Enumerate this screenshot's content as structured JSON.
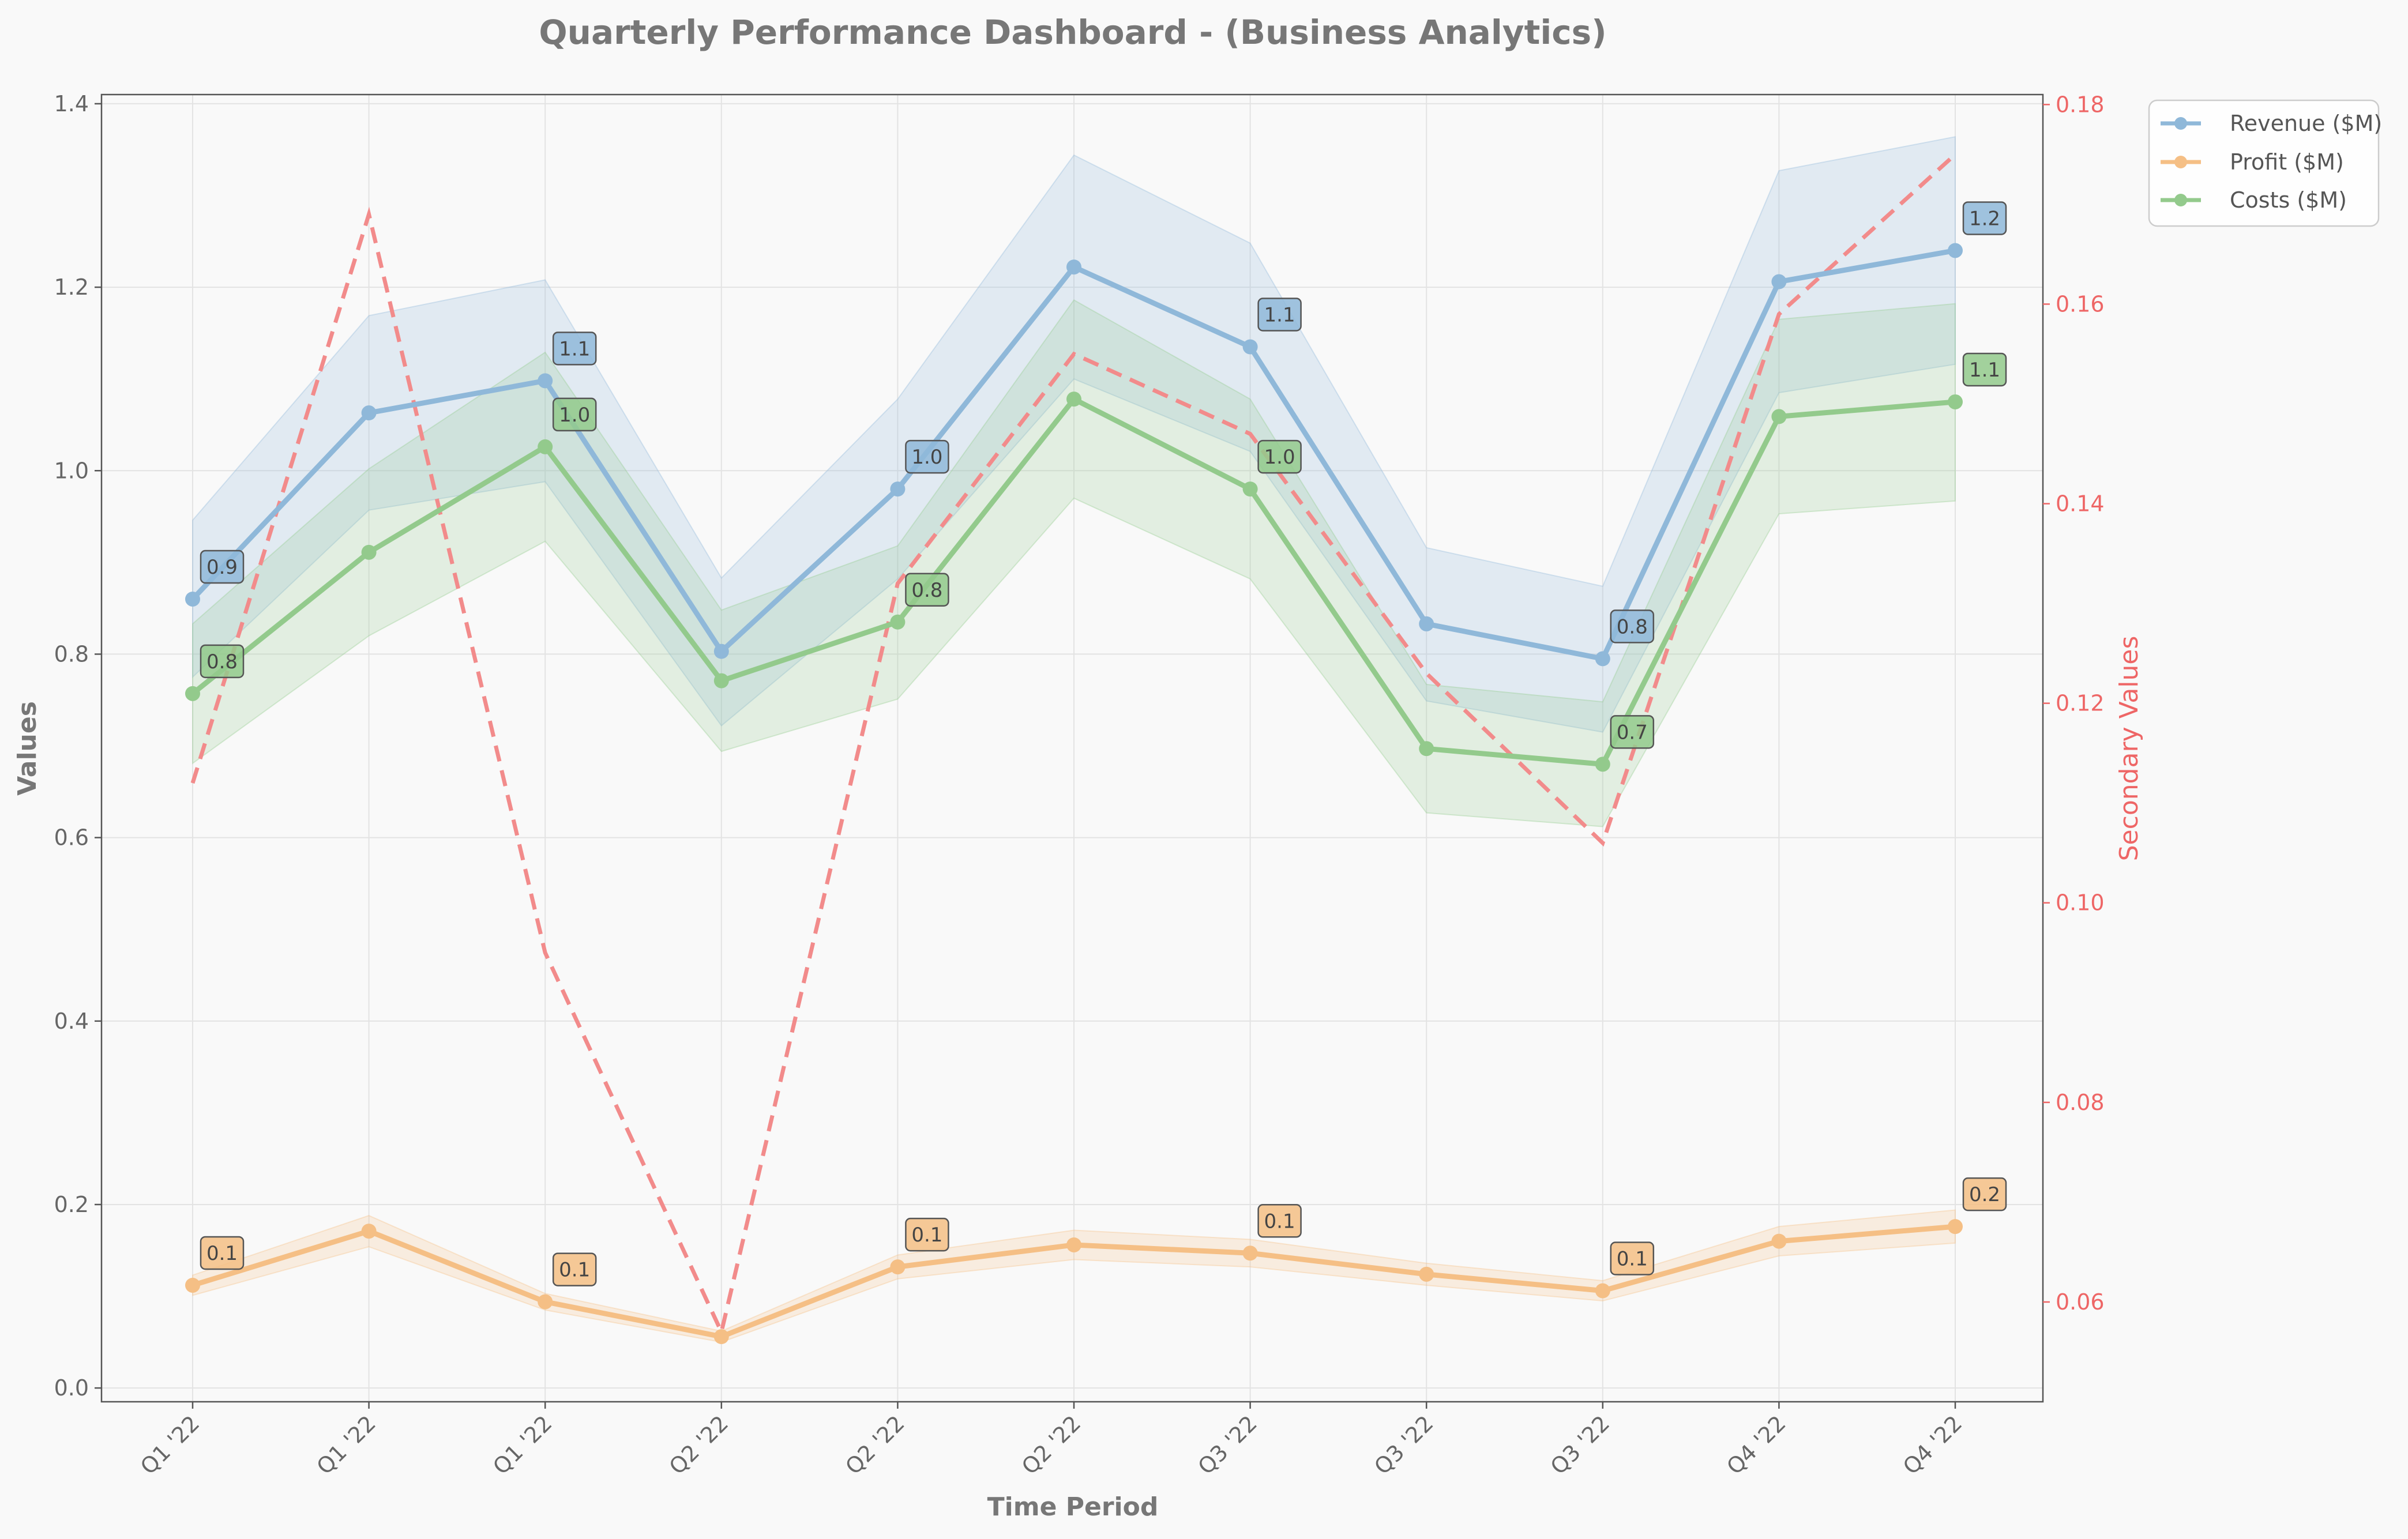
{
  "chart_data": {
    "type": "line",
    "title": "Quarterly Performance Dashboard - (Business Analytics)",
    "xlabel": "Time Period",
    "ylabel": "Values",
    "y2label": "Secondary Values",
    "categories": [
      "Q1 '22",
      "Q1 '22",
      "Q1 '22",
      "Q2 '22",
      "Q2 '22",
      "Q2 '22",
      "Q3 '22",
      "Q3 '22",
      "Q3 '22",
      "Q4 '22",
      "Q4 '22"
    ],
    "ylim": [
      -0.015,
      1.41
    ],
    "y2lim": [
      0.05,
      0.181
    ],
    "yticks": [
      "0.0",
      "0.2",
      "0.4",
      "0.6",
      "0.8",
      "1.0",
      "1.2",
      "1.4"
    ],
    "ytick_values": [
      0.0,
      0.2,
      0.4,
      0.6,
      0.8,
      1.0,
      1.2,
      1.4
    ],
    "y2ticks": [
      "0.06",
      "0.08",
      "0.10",
      "0.12",
      "0.14",
      "0.16",
      "0.18"
    ],
    "y2tick_values": [
      0.06,
      0.08,
      0.1,
      0.12,
      0.14,
      0.16,
      0.18
    ],
    "grid": true,
    "legend_position": "outside top-right",
    "series": [
      {
        "name": "Revenue ($M)",
        "color": "#8fb8d9",
        "values": [
          0.86,
          1.063,
          1.098,
          0.803,
          0.98,
          1.222,
          1.135,
          0.833,
          0.795,
          1.206,
          1.24
        ],
        "band_lower": [
          0.775,
          0.957,
          0.988,
          0.722,
          0.882,
          1.1,
          1.021,
          0.749,
          0.715,
          1.085,
          1.116
        ],
        "band_upper": [
          0.946,
          1.169,
          1.208,
          0.883,
          1.078,
          1.344,
          1.248,
          0.916,
          0.874,
          1.327,
          1.364
        ],
        "labels": [
          "0.9",
          "",
          "1.1",
          "",
          "1.0",
          "",
          "1.1",
          "",
          "0.8",
          "",
          "1.2"
        ]
      },
      {
        "name": "Profit ($M)",
        "color": "#f5bf85",
        "values": [
          0.112,
          0.171,
          0.094,
          0.056,
          0.132,
          0.156,
          0.147,
          0.124,
          0.106,
          0.16,
          0.176
        ],
        "band_lower": [
          0.101,
          0.154,
          0.085,
          0.05,
          0.119,
          0.14,
          0.132,
          0.112,
          0.095,
          0.144,
          0.158
        ],
        "band_upper": [
          0.123,
          0.188,
          0.103,
          0.062,
          0.145,
          0.172,
          0.162,
          0.136,
          0.117,
          0.176,
          0.194
        ],
        "labels": [
          "0.1",
          "",
          "0.1",
          "",
          "0.1",
          "",
          "0.1",
          "",
          "0.1",
          "",
          "0.2"
        ]
      },
      {
        "name": "Costs ($M)",
        "color": "#93ca8c",
        "values": [
          0.757,
          0.911,
          1.026,
          0.771,
          0.835,
          1.078,
          0.98,
          0.697,
          0.68,
          1.059,
          1.075
        ],
        "band_lower": [
          0.681,
          0.82,
          0.923,
          0.694,
          0.751,
          0.97,
          0.882,
          0.627,
          0.612,
          0.953,
          0.967
        ],
        "band_upper": [
          0.833,
          1.002,
          1.129,
          0.848,
          0.918,
          1.186,
          1.078,
          0.767,
          0.748,
          1.165,
          1.182
        ],
        "labels": [
          "0.8",
          "",
          "1.0",
          "",
          "0.8",
          "",
          "1.0",
          "",
          "0.7",
          "",
          "1.1"
        ]
      }
    ],
    "secondary_series": {
      "color": "#f28b8b",
      "style": "dashed",
      "values": [
        0.112,
        0.169,
        0.095,
        0.057,
        0.132,
        0.155,
        0.147,
        0.123,
        0.106,
        0.159,
        0.175
      ]
    }
  }
}
